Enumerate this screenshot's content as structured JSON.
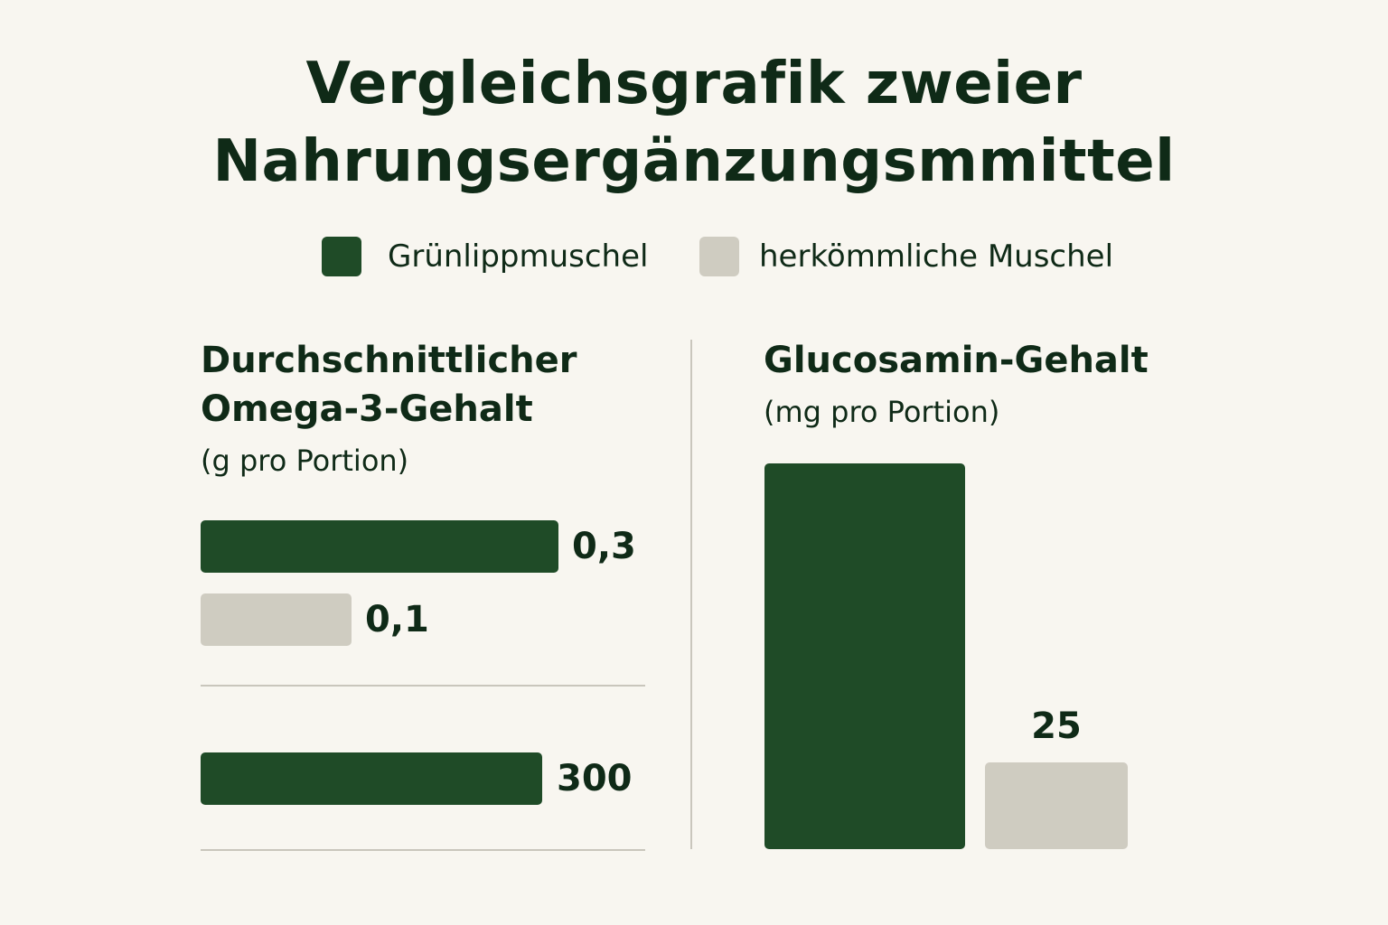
{
  "title_lines": [
    "Vergleichsgrafik zweier",
    "Nahrungsergänzungsmmittel"
  ],
  "colors": {
    "primary": "#1f4b27",
    "secondary": "#cfccc1",
    "background": "#f8f6f0",
    "text": "#0f2a17",
    "divider": "#c9c6bc"
  },
  "legend": [
    {
      "label": "Grünlipp­muschel",
      "color": "#1f4b27"
    },
    {
      "label": "herkömmliche Muschel",
      "color": "#cfccc1"
    }
  ],
  "chart_data": [
    {
      "type": "bar",
      "orientation": "horizontal",
      "title_lines": [
        "Durchschnittlicher",
        "Omega-3-Gehalt"
      ],
      "unit": "(g pro Portion)",
      "groups": [
        {
          "bars": [
            {
              "series": "Grünlippmuschel",
              "value": 0.3,
              "label": "0,3"
            },
            {
              "series": "herkömmliche Muschel",
              "value": 0.1,
              "label": "0,1"
            }
          ]
        },
        {
          "bars": [
            {
              "series": "Grünlippmuschel",
              "value": 300,
              "label": "300"
            }
          ]
        }
      ]
    },
    {
      "type": "bar",
      "orientation": "vertical",
      "title": "Glucosamin-Gehalt",
      "unit": "(mg pro Portion)",
      "bars": [
        {
          "series": "Grünlippmuschel",
          "value": null,
          "label": ""
        },
        {
          "series": "herkömmliche Muschel",
          "value": 25,
          "label": "25"
        }
      ]
    }
  ]
}
